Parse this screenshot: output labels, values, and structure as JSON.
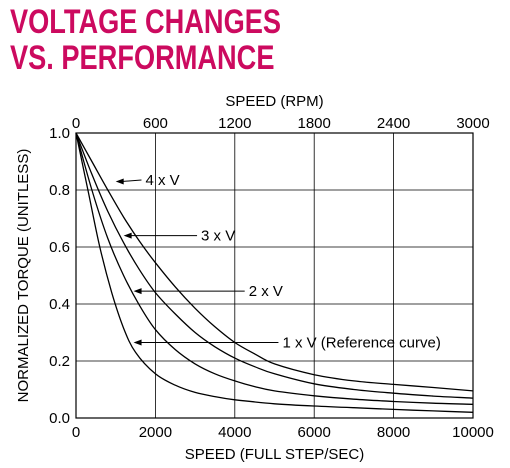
{
  "header": {
    "title_line1": "VOLTAGE CHANGES",
    "title_line2": "VS. PERFORMANCE",
    "title_color": "#cc0a5f"
  },
  "chart_data": {
    "type": "line",
    "xlabel": "SPEED (FULL STEP/SEC)",
    "x2label": "SPEED (RPM)",
    "ylabel": "NORMALIZED TORQUE (UNITLESS)",
    "xlim": [
      0,
      10000
    ],
    "x2lim": [
      0,
      3000
    ],
    "ylim": [
      0,
      1.0
    ],
    "x_ticks": [
      0,
      2000,
      4000,
      6000,
      8000,
      10000
    ],
    "x2_ticks": [
      0,
      600,
      1200,
      1800,
      2400,
      3000
    ],
    "y_ticks": [
      0.0,
      0.2,
      0.4,
      0.6,
      0.8,
      1.0
    ],
    "x_tick_labels": [
      "0",
      "2000",
      "4000",
      "6000",
      "8000",
      "10000"
    ],
    "x2_tick_labels": [
      "0",
      "600",
      "1200",
      "1800",
      "2400",
      "3000"
    ],
    "y_tick_labels": [
      "0.0",
      "0.2",
      "0.4",
      "0.6",
      "0.8",
      "1.0"
    ],
    "grid": true,
    "line_color": "#000000",
    "series": [
      {
        "name": "4 x V",
        "label_at": [
          1000,
          0.83
        ],
        "label_text_at": [
          1750,
          0.835
        ],
        "points": [
          [
            0,
            1.0
          ],
          [
            400,
            0.9
          ],
          [
            800,
            0.8
          ],
          [
            1200,
            0.705
          ],
          [
            1600,
            0.62
          ],
          [
            2000,
            0.545
          ],
          [
            2500,
            0.46
          ],
          [
            3000,
            0.385
          ],
          [
            3500,
            0.32
          ],
          [
            4000,
            0.265
          ],
          [
            4500,
            0.225
          ],
          [
            5000,
            0.19
          ],
          [
            6000,
            0.152
          ],
          [
            7000,
            0.13
          ],
          [
            8000,
            0.118
          ],
          [
            9000,
            0.107
          ],
          [
            10000,
            0.095
          ]
        ]
      },
      {
        "name": "3 x V",
        "label_at": [
          1200,
          0.64
        ],
        "label_text_at": [
          3150,
          0.64
        ],
        "points": [
          [
            0,
            1.0
          ],
          [
            400,
            0.855
          ],
          [
            800,
            0.725
          ],
          [
            1200,
            0.615
          ],
          [
            1600,
            0.52
          ],
          [
            2000,
            0.44
          ],
          [
            2500,
            0.365
          ],
          [
            3000,
            0.3
          ],
          [
            3500,
            0.25
          ],
          [
            4000,
            0.21
          ],
          [
            4500,
            0.18
          ],
          [
            5000,
            0.155
          ],
          [
            6000,
            0.12
          ],
          [
            7000,
            0.1
          ],
          [
            8000,
            0.087
          ],
          [
            9000,
            0.077
          ],
          [
            10000,
            0.07
          ]
        ]
      },
      {
        "name": "2 x V",
        "label_at": [
          1450,
          0.445
        ],
        "label_text_at": [
          4350,
          0.445
        ],
        "points": [
          [
            0,
            1.0
          ],
          [
            400,
            0.8
          ],
          [
            800,
            0.63
          ],
          [
            1200,
            0.5
          ],
          [
            1600,
            0.395
          ],
          [
            2000,
            0.31
          ],
          [
            2500,
            0.24
          ],
          [
            3000,
            0.19
          ],
          [
            3500,
            0.155
          ],
          [
            4000,
            0.13
          ],
          [
            4500,
            0.11
          ],
          [
            5000,
            0.095
          ],
          [
            6000,
            0.078
          ],
          [
            7000,
            0.066
          ],
          [
            8000,
            0.058
          ],
          [
            9000,
            0.052
          ],
          [
            10000,
            0.048
          ]
        ]
      },
      {
        "name": "1 x V (Reference curve)",
        "label_at": [
          1450,
          0.265
        ],
        "label_text_at": [
          5200,
          0.265
        ],
        "points": [
          [
            0,
            1.0
          ],
          [
            300,
            0.8
          ],
          [
            600,
            0.6
          ],
          [
            900,
            0.44
          ],
          [
            1200,
            0.315
          ],
          [
            1500,
            0.23
          ],
          [
            2000,
            0.155
          ],
          [
            2500,
            0.115
          ],
          [
            3000,
            0.09
          ],
          [
            3500,
            0.075
          ],
          [
            4000,
            0.064
          ],
          [
            5000,
            0.05
          ],
          [
            6000,
            0.042
          ],
          [
            7000,
            0.036
          ],
          [
            8000,
            0.03
          ],
          [
            9000,
            0.025
          ],
          [
            10000,
            0.02
          ]
        ]
      }
    ]
  }
}
